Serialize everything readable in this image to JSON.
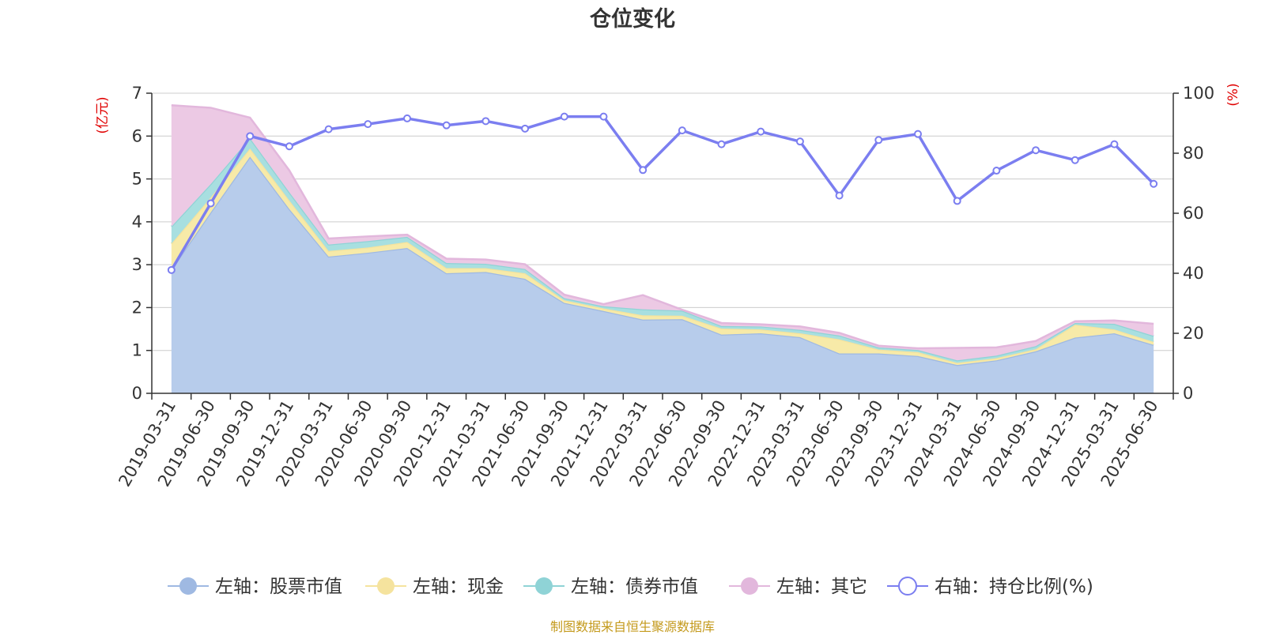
{
  "chart_data": {
    "type": "area",
    "title": "仓位变化",
    "categories": [
      "2019-03-31",
      "2019-06-30",
      "2019-09-30",
      "2019-12-31",
      "2020-03-31",
      "2020-06-30",
      "2020-09-30",
      "2020-12-31",
      "2021-03-31",
      "2021-06-30",
      "2021-09-30",
      "2021-12-31",
      "2022-03-31",
      "2022-06-30",
      "2022-09-30",
      "2022-12-31",
      "2023-03-31",
      "2023-06-30",
      "2023-09-30",
      "2023-12-31",
      "2024-03-31",
      "2024-06-30",
      "2024-09-30",
      "2024-12-31",
      "2025-03-31",
      "2025-06-30"
    ],
    "left_axis": {
      "unit": "(亿元)",
      "ylim": [
        0,
        7
      ],
      "ticks": [
        "0",
        "1",
        "2",
        "3",
        "4",
        "5",
        "6",
        "7"
      ]
    },
    "right_axis": {
      "unit": "(%)",
      "ylim": [
        0,
        100
      ],
      "ticks": [
        "0",
        "20",
        "40",
        "60",
        "80",
        "100"
      ]
    },
    "series": [
      {
        "name": "左轴：股票市值",
        "axis": "left",
        "stacked": true,
        "color": "#9fb9e2",
        "fill": "#b7cceb",
        "values": [
          2.89,
          4.22,
          5.52,
          4.3,
          3.19,
          3.28,
          3.39,
          2.8,
          2.83,
          2.67,
          2.11,
          1.92,
          1.72,
          1.73,
          1.37,
          1.4,
          1.31,
          0.93,
          0.93,
          0.87,
          0.66,
          0.77,
          0.98,
          1.3,
          1.4,
          1.13
        ]
      },
      {
        "name": "左轴：现金",
        "axis": "left",
        "stacked": true,
        "color": "#f5e39e",
        "fill": "#f7eaa8",
        "values": [
          0.6,
          0.35,
          0.19,
          0.2,
          0.13,
          0.12,
          0.14,
          0.12,
          0.09,
          0.13,
          0.06,
          0.06,
          0.1,
          0.08,
          0.14,
          0.09,
          0.09,
          0.33,
          0.09,
          0.09,
          0.05,
          0.05,
          0.05,
          0.3,
          0.09,
          0.07
        ]
      },
      {
        "name": "左轴：债券市值",
        "axis": "left",
        "stacked": true,
        "color": "#8fd3d6",
        "fill": "#a8dfe0",
        "values": [
          0.4,
          0.31,
          0.24,
          0.19,
          0.15,
          0.15,
          0.12,
          0.12,
          0.1,
          0.1,
          0.05,
          0.05,
          0.14,
          0.12,
          0.06,
          0.07,
          0.08,
          0.09,
          0.05,
          0.05,
          0.06,
          0.06,
          0.07,
          0.04,
          0.13,
          0.14
        ]
      },
      {
        "name": "左轴：其它",
        "axis": "left",
        "stacked": true,
        "color": "#e2b7dc",
        "fill": "#ecc9e4",
        "values": [
          2.83,
          1.78,
          0.48,
          0.51,
          0.14,
          0.11,
          0.05,
          0.1,
          0.1,
          0.11,
          0.08,
          0.05,
          0.33,
          0.02,
          0.07,
          0.05,
          0.08,
          0.06,
          0.04,
          0.04,
          0.29,
          0.19,
          0.12,
          0.04,
          0.08,
          0.28
        ]
      },
      {
        "name": "右轴：持仓比例(%)",
        "axis": "right",
        "type": "line",
        "color": "#7b7ef0",
        "values": [
          41.1,
          63.3,
          85.7,
          82.3,
          88.0,
          89.7,
          91.6,
          89.3,
          90.7,
          88.2,
          92.2,
          92.2,
          74.4,
          87.6,
          83.0,
          87.2,
          83.9,
          65.9,
          84.4,
          86.4,
          64.1,
          74.2,
          81.0,
          77.7,
          83.0,
          69.8
        ]
      }
    ],
    "legend": "bottom",
    "grid": true
  },
  "footer": {
    "source": "制图数据来自恒生聚源数据库"
  }
}
